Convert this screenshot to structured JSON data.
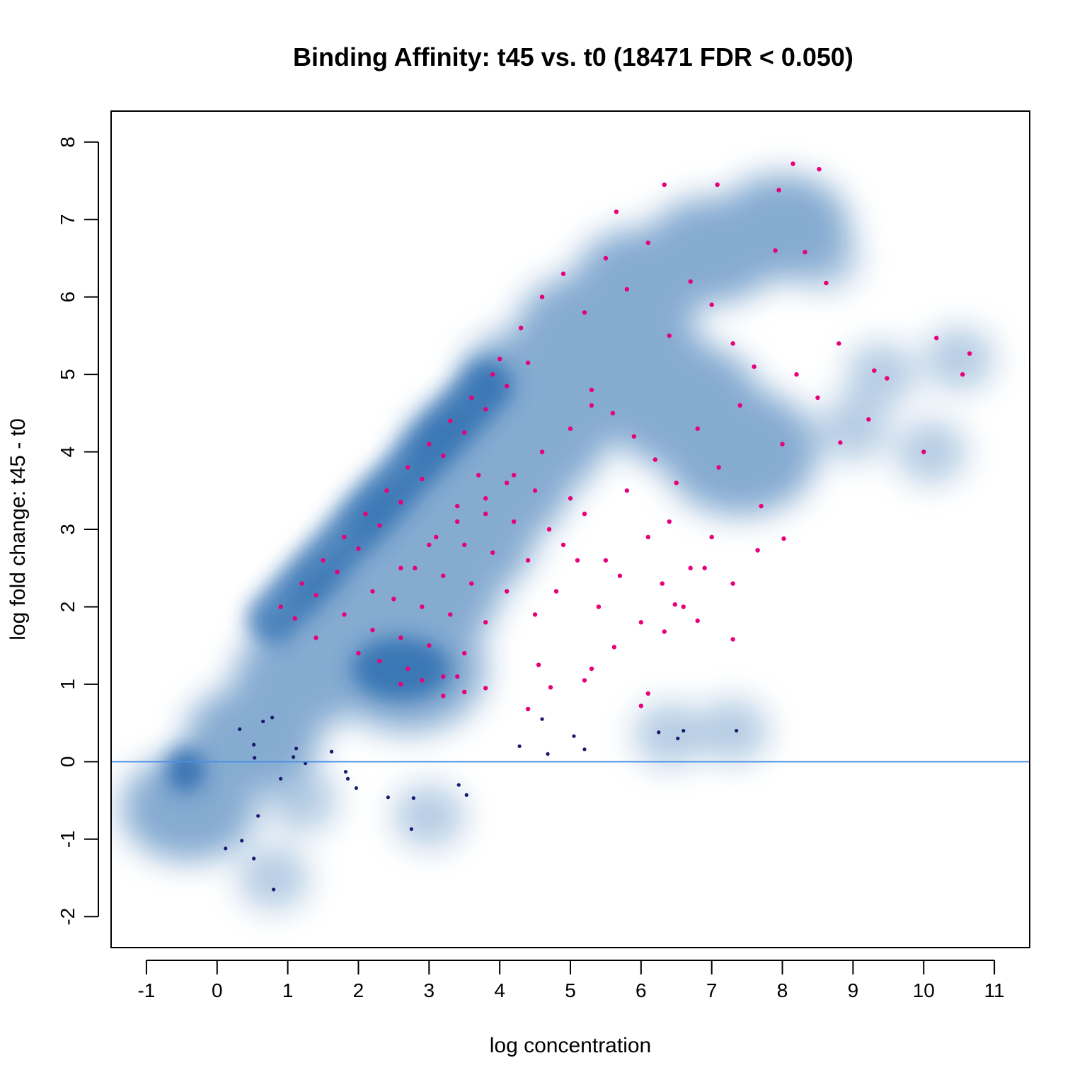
{
  "chart_data": {
    "type": "scatter",
    "title": "Binding Affinity: t45 vs. t0 (18471 FDR < 0.050)",
    "xlabel": "log concentration",
    "ylabel": "log fold change: t45 - t0",
    "xlim": [
      -1.5,
      11.5
    ],
    "ylim": [
      -2.4,
      8.4
    ],
    "x_ticks": [
      -1,
      0,
      1,
      2,
      3,
      4,
      5,
      6,
      7,
      8,
      9,
      10,
      11
    ],
    "y_ticks": [
      -2,
      -1,
      0,
      1,
      2,
      3,
      4,
      5,
      6,
      7,
      8
    ],
    "reference_line": {
      "y": 0,
      "color": "#4A90E2"
    },
    "colors": {
      "significant": "#E6007A",
      "non_significant": "#1A1A6E",
      "density": "#2166AC"
    },
    "series": [
      {
        "name": "FDR < 0.050",
        "x": [
          0.9,
          1.2,
          1.5,
          1.8,
          2.1,
          2.4,
          2.7,
          3.0,
          3.3,
          3.6,
          3.9,
          1.1,
          1.4,
          1.7,
          2.0,
          2.3,
          2.6,
          2.9,
          3.2,
          3.5,
          3.8,
          4.1,
          4.4,
          1.4,
          1.8,
          2.2,
          2.6,
          3.0,
          3.4,
          3.8,
          4.2,
          4.6,
          5.0,
          5.3,
          2.0,
          2.2,
          2.5,
          2.8,
          3.1,
          3.4,
          3.7,
          2.3,
          2.6,
          2.9,
          3.2,
          3.5,
          3.8,
          4.1,
          2.7,
          3.0,
          3.3,
          3.6,
          3.9,
          4.2,
          4.5,
          3.2,
          3.5,
          3.8,
          4.1,
          4.4,
          4.7,
          5.0,
          4.0,
          4.3,
          4.6,
          4.9,
          5.2,
          5.5,
          5.8,
          6.1,
          6.4,
          6.7,
          7.0,
          7.3,
          7.6,
          7.9,
          8.2,
          8.5,
          8.8,
          5.3,
          5.6,
          5.9,
          6.2,
          6.5,
          6.8,
          7.1,
          7.4,
          7.7,
          8.0,
          4.9,
          5.2,
          5.5,
          5.8,
          6.1,
          6.4,
          6.7,
          7.0,
          7.3,
          4.5,
          4.8,
          5.1,
          5.4,
          5.7,
          6.0,
          6.3,
          6.6,
          6.9,
          5.65,
          6.33,
          7.08,
          8.15,
          8.52,
          7.95,
          8.62,
          8.32,
          9.3,
          9.48,
          9.22,
          10.18,
          10.55,
          10.65,
          10.0,
          8.82,
          8.02,
          7.65,
          7.3,
          6.8,
          6.48,
          6.33,
          6.0,
          6.1,
          5.62,
          5.3,
          5.2,
          4.72,
          4.4,
          4.55,
          3.2,
          3.5,
          3.8,
          2.6,
          2.9,
          3.4
        ],
        "y": [
          2.0,
          2.3,
          2.6,
          2.9,
          3.2,
          3.5,
          3.8,
          4.1,
          4.4,
          4.7,
          5.0,
          1.85,
          2.15,
          2.45,
          2.75,
          3.05,
          3.35,
          3.65,
          3.95,
          4.25,
          4.55,
          4.85,
          5.15,
          1.6,
          1.9,
          2.2,
          2.5,
          2.8,
          3.1,
          3.4,
          3.7,
          4.0,
          4.3,
          4.6,
          1.4,
          1.7,
          2.1,
          2.5,
          2.9,
          3.3,
          3.7,
          1.3,
          1.6,
          2.0,
          2.4,
          2.8,
          3.2,
          3.6,
          1.2,
          1.5,
          1.9,
          2.3,
          2.7,
          3.1,
          3.5,
          1.1,
          1.4,
          1.8,
          2.2,
          2.6,
          3.0,
          3.4,
          5.2,
          5.6,
          6.0,
          6.3,
          5.8,
          6.5,
          6.1,
          6.7,
          5.5,
          6.2,
          5.9,
          5.4,
          5.1,
          6.6,
          5.0,
          4.7,
          5.4,
          4.8,
          4.5,
          4.2,
          3.9,
          3.6,
          4.3,
          3.8,
          4.6,
          3.3,
          4.1,
          2.8,
          3.2,
          2.6,
          3.5,
          2.9,
          3.1,
          2.5,
          2.9,
          2.3,
          1.9,
          2.2,
          2.6,
          2.0,
          2.4,
          1.8,
          2.3,
          2.0,
          2.5,
          7.1,
          7.45,
          7.45,
          7.72,
          7.65,
          7.38,
          6.18,
          6.58,
          5.05,
          4.95,
          4.42,
          5.47,
          5.0,
          5.27,
          4.0,
          4.12,
          2.88,
          2.73,
          1.58,
          1.82,
          2.03,
          1.68,
          0.72,
          0.88,
          1.48,
          1.2,
          1.05,
          0.96,
          0.68,
          1.25,
          0.85,
          0.9,
          0.95,
          1.0,
          1.05,
          1.1
        ]
      },
      {
        "name": "",
        "x": [
          0.32,
          0.52,
          0.65,
          0.78,
          0.53,
          1.08,
          1.12,
          1.25,
          0.9,
          1.62,
          1.82,
          1.85,
          1.97,
          2.42,
          2.78,
          3.42,
          3.53,
          0.58,
          0.12,
          0.35,
          0.52,
          0.8,
          2.75,
          4.28,
          4.6,
          4.68,
          5.05,
          5.2,
          6.25,
          6.52,
          6.6,
          7.35
        ],
        "y": [
          0.42,
          0.22,
          0.52,
          0.57,
          0.05,
          0.06,
          0.17,
          -0.02,
          -0.22,
          0.13,
          -0.13,
          -0.22,
          -0.34,
          -0.46,
          -0.47,
          -0.3,
          -0.43,
          -0.7,
          -1.12,
          -1.02,
          -1.25,
          -1.65,
          -0.87,
          0.2,
          0.55,
          0.1,
          0.33,
          0.16,
          0.38,
          0.3,
          0.4,
          0.4
        ]
      }
    ]
  }
}
